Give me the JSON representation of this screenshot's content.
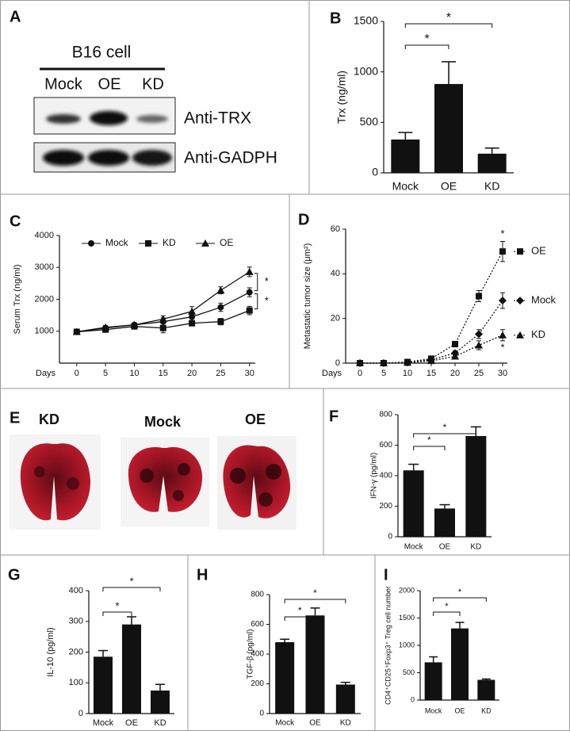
{
  "blot": {
    "panel": "A",
    "title": "B16 cell",
    "lanes": [
      "Mock",
      "OE",
      "KD"
    ],
    "rows": [
      "Anti-TRX",
      "Anti-GADPH"
    ]
  },
  "lung_photos": {
    "panel": "E",
    "labels": [
      "KD",
      "Mock",
      "OE"
    ]
  },
  "chart_data": [
    {
      "panel": "B",
      "type": "bar",
      "ylabel": "Trx (ng/ml)",
      "categories": [
        "Mock",
        "OE",
        "KD"
      ],
      "values": [
        330,
        880,
        190
      ],
      "errors": [
        70,
        220,
        55
      ],
      "color": "#111111",
      "ylim": [
        0,
        1500
      ],
      "yticks": [
        0,
        500,
        1000,
        1500
      ],
      "significance": [
        {
          "between": [
            0,
            1
          ],
          "label": "*"
        },
        {
          "between": [
            0,
            2
          ],
          "label": "*"
        }
      ]
    },
    {
      "panel": "C",
      "type": "line",
      "ylabel": "Serum Trx (ng/ml)",
      "xlabel": "Days",
      "x": [
        0,
        5,
        10,
        15,
        20,
        25,
        30
      ],
      "xlim": [
        -3,
        31
      ],
      "xticks": [
        0,
        5,
        10,
        15,
        20,
        25,
        30
      ],
      "ylim": [
        0,
        4000
      ],
      "yticks": [
        1000,
        2000,
        3000,
        4000
      ],
      "linestyle": "solid",
      "legend": "top",
      "series": [
        {
          "name": "Mock",
          "color": "#111111",
          "marker": "circle",
          "values": [
            980,
            1100,
            1200,
            1300,
            1450,
            1750,
            2220
          ],
          "errors": [
            80,
            60,
            60,
            120,
            130,
            130,
            140
          ]
        },
        {
          "name": "KD",
          "color": "#111111",
          "marker": "square",
          "values": [
            980,
            1050,
            1150,
            1100,
            1250,
            1300,
            1650
          ],
          "errors": [
            80,
            60,
            60,
            150,
            80,
            100,
            130
          ]
        },
        {
          "name": "OE",
          "color": "#111111",
          "marker": "triangle",
          "values": [
            980,
            1120,
            1200,
            1380,
            1620,
            2280,
            2860
          ],
          "errors": [
            80,
            60,
            60,
            100,
            150,
            110,
            150
          ]
        }
      ],
      "significance": [
        {
          "between": [
            2,
            0
          ],
          "label": "*"
        },
        {
          "between": [
            0,
            1
          ],
          "label": "*"
        }
      ]
    },
    {
      "panel": "D",
      "type": "line",
      "ylabel": "Metastatic tumor size (μm²)",
      "xlabel": "Days",
      "x": [
        0,
        5,
        10,
        15,
        20,
        25,
        30
      ],
      "xlim": [
        -3,
        31
      ],
      "xticks": [
        0,
        5,
        10,
        15,
        20,
        25,
        30
      ],
      "ylim": [
        0,
        60
      ],
      "yticks": [
        0,
        20,
        40,
        60
      ],
      "linestyle": "dotted",
      "legend": "end",
      "series": [
        {
          "name": "OE",
          "color": "#111111",
          "marker": "square",
          "values": [
            0,
            0,
            0.5,
            2,
            8.5,
            30,
            50
          ],
          "errors": [
            0,
            0,
            0.3,
            0.8,
            1,
            2.5,
            4.5
          ]
        },
        {
          "name": "Mock",
          "color": "#111111",
          "marker": "diamond",
          "values": [
            0,
            0,
            0.3,
            1.5,
            4.5,
            13,
            28
          ],
          "errors": [
            0,
            0,
            0.2,
            0.5,
            1,
            2,
            3.5
          ]
        },
        {
          "name": "KD",
          "color": "#111111",
          "marker": "triangle",
          "values": [
            0,
            0,
            0.2,
            1,
            3,
            8,
            12.5
          ],
          "errors": [
            0,
            0,
            0.1,
            0.3,
            1,
            2,
            2.5
          ]
        }
      ],
      "significance": [
        {
          "series": 0,
          "label": "*",
          "side": "above"
        },
        {
          "series": 2,
          "label": "*",
          "side": "below"
        }
      ]
    },
    {
      "panel": "F",
      "type": "bar",
      "ylabel": "IFN-γ (pg/ml)",
      "categories": [
        "Mock",
        "OE",
        "KD"
      ],
      "values": [
        435,
        185,
        660
      ],
      "errors": [
        40,
        25,
        60
      ],
      "color": "#111111",
      "ylim": [
        0,
        800
      ],
      "yticks": [
        0,
        200,
        400,
        600,
        800
      ],
      "significance": [
        {
          "between": [
            0,
            1
          ],
          "label": "*"
        },
        {
          "between": [
            0,
            2
          ],
          "label": "*"
        }
      ]
    },
    {
      "panel": "G",
      "type": "bar",
      "ylabel": "IL-10 (pg/ml)",
      "categories": [
        "Mock",
        "OE",
        "KD"
      ],
      "values": [
        185,
        290,
        75
      ],
      "errors": [
        20,
        25,
        20
      ],
      "color": "#111111",
      "ylim": [
        0,
        400
      ],
      "yticks": [
        0,
        100,
        200,
        300,
        400
      ],
      "significance": [
        {
          "between": [
            0,
            1
          ],
          "label": "*"
        },
        {
          "between": [
            0,
            2
          ],
          "label": "*"
        }
      ]
    },
    {
      "panel": "H",
      "type": "bar",
      "ylabel": "TGF-β (pg/ml)",
      "categories": [
        "Mock",
        "OE",
        "KD"
      ],
      "values": [
        480,
        660,
        195
      ],
      "errors": [
        20,
        50,
        15
      ],
      "color": "#111111",
      "ylim": [
        0,
        800
      ],
      "yticks": [
        0,
        200,
        400,
        600,
        800
      ],
      "significance": [
        {
          "between": [
            0,
            1
          ],
          "label": "*"
        },
        {
          "between": [
            0,
            2
          ],
          "label": "*"
        }
      ]
    },
    {
      "panel": "I",
      "type": "bar",
      "ylabel": "CD4⁺CD25⁺Foxp3⁺ Treg cell number",
      "categories": [
        "Mock",
        "OE",
        "KD"
      ],
      "values": [
        690,
        1310,
        370
      ],
      "errors": [
        100,
        110,
        15
      ],
      "color": "#111111",
      "ylim": [
        0,
        2000
      ],
      "yticks": [
        0,
        500,
        1000,
        1500,
        2000
      ],
      "significance": [
        {
          "between": [
            0,
            1
          ],
          "label": "*"
        },
        {
          "between": [
            0,
            2
          ],
          "label": "*"
        }
      ]
    }
  ]
}
